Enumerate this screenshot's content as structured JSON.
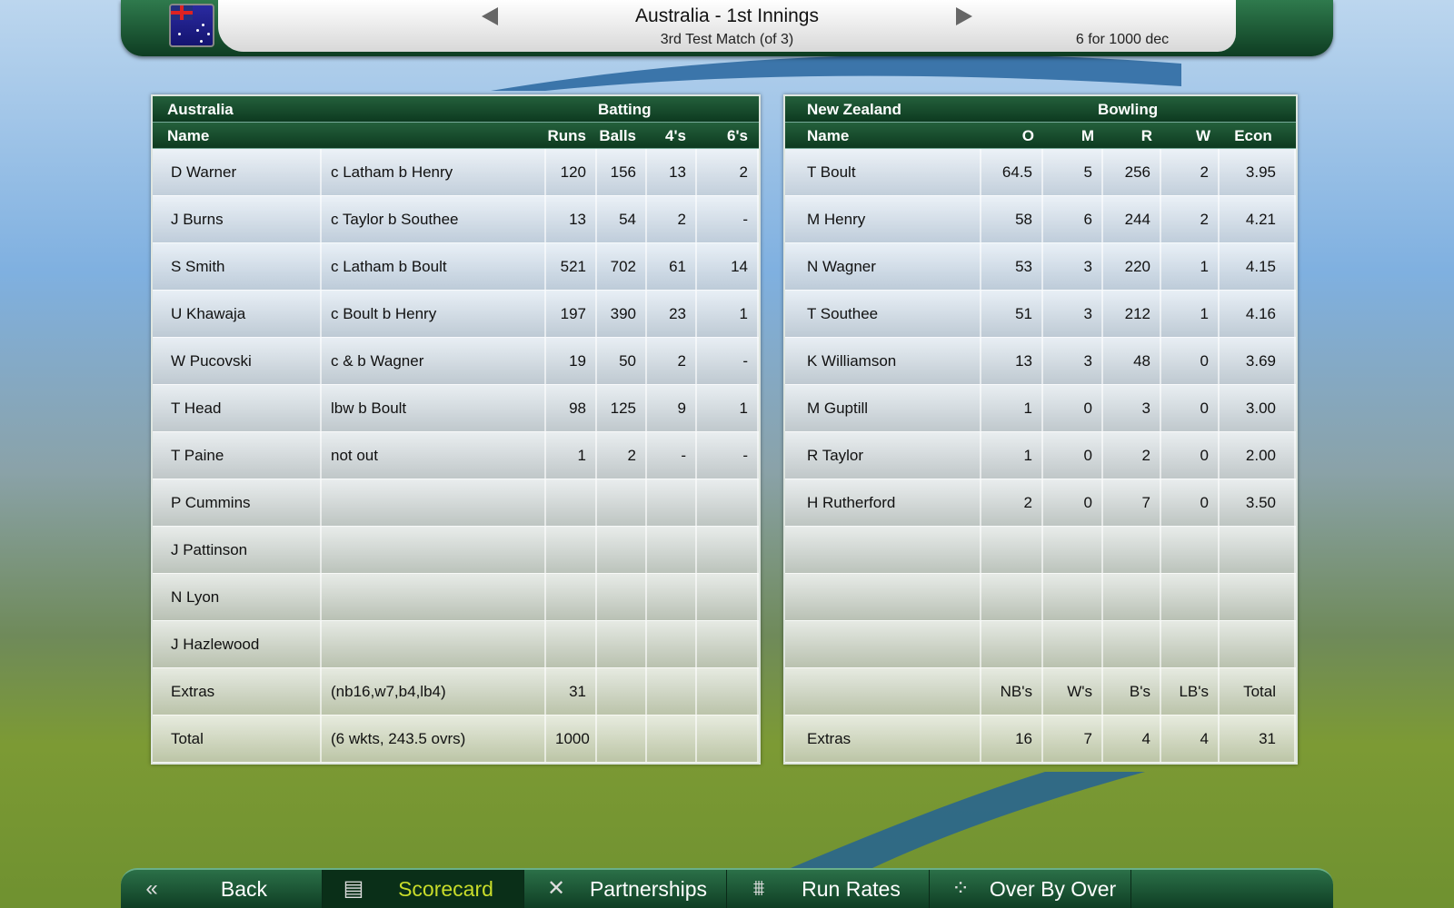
{
  "header": {
    "title": "Australia - 1st Innings",
    "subtitle": "3rd Test Match (of 3)",
    "score": "6 for 1000 dec",
    "flag": "australia-flag"
  },
  "batting": {
    "team": "Australia",
    "section": "Batting",
    "columns": [
      "Name",
      "Runs",
      "Balls",
      "4's",
      "6's"
    ],
    "rows": [
      [
        "D Warner",
        "c Latham b Henry",
        "120",
        "156",
        "13",
        "2"
      ],
      [
        "J Burns",
        "c Taylor b Southee",
        "13",
        "54",
        "2",
        "-"
      ],
      [
        "S Smith",
        "c Latham b Boult",
        "521",
        "702",
        "61",
        "14"
      ],
      [
        "U Khawaja",
        "c Boult b Henry",
        "197",
        "390",
        "23",
        "1"
      ],
      [
        "W Pucovski",
        "c & b Wagner",
        "19",
        "50",
        "2",
        "-"
      ],
      [
        "T Head",
        "lbw b Boult",
        "98",
        "125",
        "9",
        "1"
      ],
      [
        "T Paine",
        "not out",
        "1",
        "2",
        "-",
        "-"
      ],
      [
        "P Cummins",
        "",
        "",
        "",
        "",
        ""
      ],
      [
        "J Pattinson",
        "",
        "",
        "",
        "",
        ""
      ],
      [
        "N Lyon",
        "",
        "",
        "",
        "",
        ""
      ],
      [
        "J Hazlewood",
        "",
        "",
        "",
        "",
        ""
      ],
      [
        "Extras",
        "(nb16,w7,b4,lb4)",
        "31",
        "",
        "",
        ""
      ],
      [
        "Total",
        "(6 wkts, 243.5 ovrs)",
        "1000",
        "",
        "",
        ""
      ]
    ]
  },
  "bowling": {
    "team": "New Zealand",
    "section": "Bowling",
    "columns": [
      "Name",
      "O",
      "M",
      "R",
      "W",
      "Econ"
    ],
    "rows": [
      [
        "T Boult",
        "64.5",
        "5",
        "256",
        "2",
        "3.95"
      ],
      [
        "M Henry",
        "58",
        "6",
        "244",
        "2",
        "4.21"
      ],
      [
        "N Wagner",
        "53",
        "3",
        "220",
        "1",
        "4.15"
      ],
      [
        "T Southee",
        "51",
        "3",
        "212",
        "1",
        "4.16"
      ],
      [
        "K Williamson",
        "13",
        "3",
        "48",
        "0",
        "3.69"
      ],
      [
        "M Guptill",
        "1",
        "0",
        "3",
        "0",
        "3.00"
      ],
      [
        "R Taylor",
        "1",
        "0",
        "2",
        "0",
        "2.00"
      ],
      [
        "H Rutherford",
        "2",
        "0",
        "7",
        "0",
        "3.50"
      ],
      [
        "",
        "",
        "",
        "",
        "",
        ""
      ],
      [
        "",
        "",
        "",
        "",
        "",
        ""
      ],
      [
        "",
        "",
        "",
        "",
        "",
        ""
      ],
      [
        "",
        "NB's",
        "W's",
        "B's",
        "LB's",
        "Total"
      ],
      [
        "Extras",
        "16",
        "7",
        "4",
        "4",
        "31"
      ]
    ]
  },
  "nav": {
    "active": "Scorecard",
    "tabs": [
      {
        "label": "Back",
        "icon": "double-chevron-left-icon",
        "glyph": "«"
      },
      {
        "label": "Scorecard",
        "icon": "scorecard-icon",
        "glyph": "▤"
      },
      {
        "label": "Partnerships",
        "icon": "crossed-bats-icon",
        "glyph": "✕"
      },
      {
        "label": "Run Rates",
        "icon": "run-rates-icon",
        "glyph": "⩩"
      },
      {
        "label": "Over By Over",
        "icon": "over-by-over-icon",
        "glyph": "⁘"
      }
    ]
  },
  "colors": {
    "header_green": "#0d3a20",
    "active_tab_text": "#c8dc2a"
  }
}
